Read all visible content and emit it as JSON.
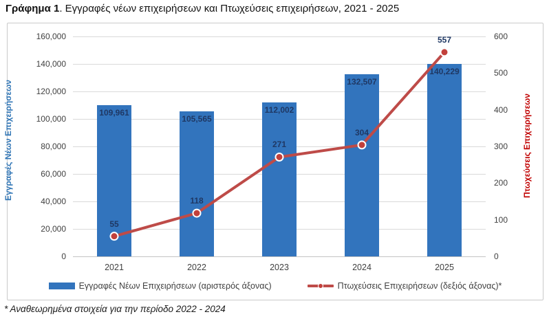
{
  "title": {
    "prefix": "Γράφημα 1",
    "rest": ". Εγγραφές νέων επιχειρήσεων και Πτωχεύσεις επιχειρήσεων, 2021 - 2025"
  },
  "footnote": "* Αναθεωρημένα στοιχεία για την περίοδο 2022 - 2024",
  "colors": {
    "bar": "#3274bd",
    "line": "#be4b48",
    "marker_fill": "#c2403b",
    "marker_ring": "#ffffff",
    "bar_label": "#1f3864",
    "line_label": "#1f3864",
    "left_axis_title": "#2e74b5",
    "right_axis_title": "#c00000",
    "tick_text": "#404040",
    "grid": "#d9d9d9",
    "border": "#c9c9c9"
  },
  "chart_data": {
    "type": "bar+line combo",
    "categories": [
      "2021",
      "2022",
      "2023",
      "2024",
      "2025"
    ],
    "series": [
      {
        "name": "Εγγραφές Νέων Επιχειρήσεων (αριστερός άξονας)",
        "type": "bar",
        "axis": "left",
        "values": [
          109961,
          105565,
          112002,
          132507,
          140229
        ],
        "labels": [
          "109,961",
          "105,565",
          "112,002",
          "132,507",
          "140,229"
        ]
      },
      {
        "name": "Πτωχεύσεις Επιχειρήσεων (δεξιός άξονας)*",
        "type": "line",
        "axis": "right",
        "values": [
          55,
          118,
          271,
          304,
          557
        ],
        "labels": [
          "55",
          "118",
          "271",
          "304",
          "557"
        ]
      }
    ],
    "left_axis": {
      "label": "Εγγραφές Νέων Επιχειρήσεων",
      "min": 0,
      "max": 160000,
      "step": 20000,
      "tick_labels": [
        "0",
        "20,000",
        "40,000",
        "60,000",
        "80,000",
        "100,000",
        "120,000",
        "140,000",
        "160,000"
      ]
    },
    "right_axis": {
      "label": "Πτωχεύσεις Επιχειρήσεων",
      "min": 0,
      "max": 600,
      "step": 100,
      "tick_labels": [
        "0",
        "100",
        "200",
        "300",
        "400",
        "500",
        "600"
      ]
    },
    "grid": true,
    "legend_position": "bottom"
  }
}
